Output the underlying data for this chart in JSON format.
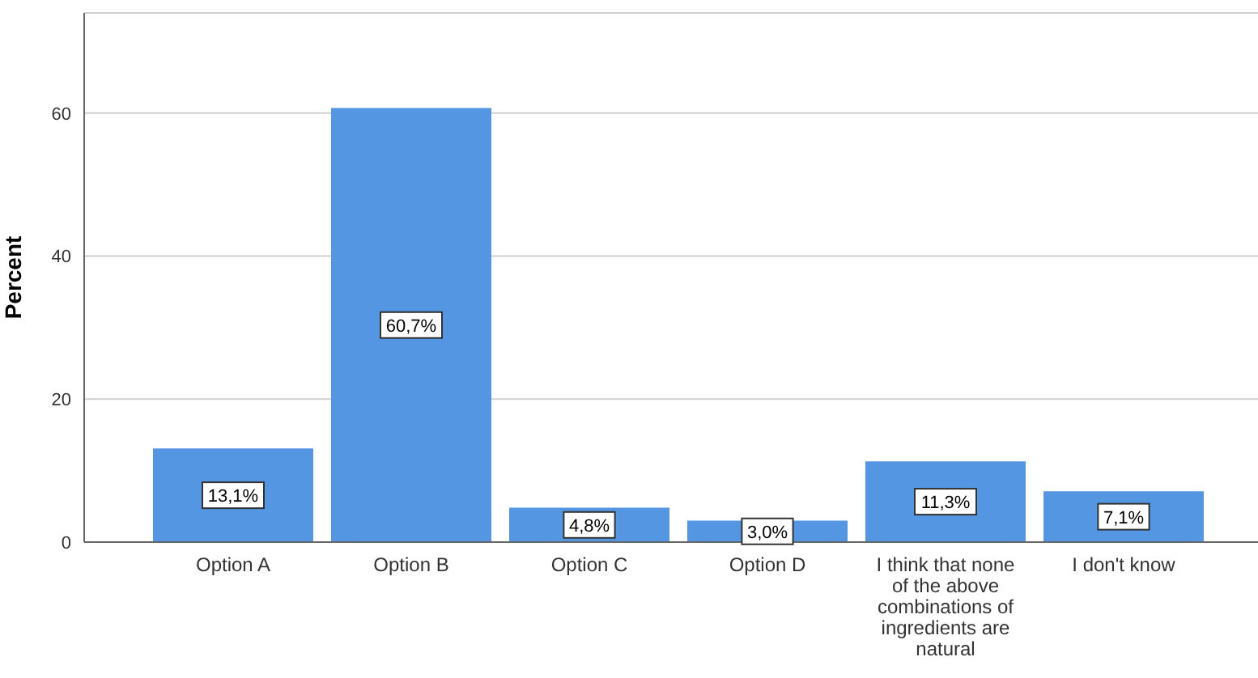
{
  "chart_data": {
    "type": "bar",
    "ylabel": "Percent",
    "categories": [
      "Option A",
      "Option B",
      "Option C",
      "Option D",
      "I think that none of the above combinations of ingredients are natural",
      "I don't know"
    ],
    "values": [
      13.1,
      60.7,
      4.8,
      3.0,
      11.3,
      7.1
    ],
    "value_labels": [
      "13,1%",
      "60,7%",
      "4,8%",
      "3,0%",
      "11,3%",
      "7,1%"
    ],
    "color": "#5596e2",
    "ylim": [
      0,
      74
    ],
    "yticks": [
      0,
      20,
      40,
      60
    ],
    "grid": "y"
  }
}
